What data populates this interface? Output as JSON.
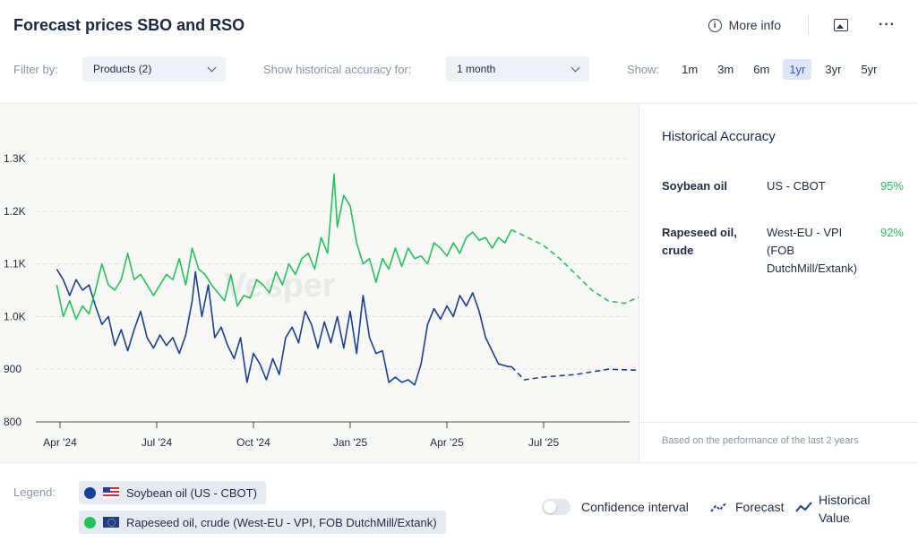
{
  "header": {
    "title": "Forecast prices SBO and RSO",
    "more_info_label": "More info",
    "info_icon": "info-icon",
    "image_icon": "image-icon",
    "more_icon": "more-horizontal-icon"
  },
  "filters": {
    "filter_by_label": "Filter by:",
    "products_value": "Products (2)",
    "accuracy_label": "Show historical accuracy for:",
    "accuracy_value": "1 month",
    "show_label": "Show:",
    "ranges": [
      {
        "label": "1m",
        "active": false
      },
      {
        "label": "3m",
        "active": false
      },
      {
        "label": "6m",
        "active": false
      },
      {
        "label": "1yr",
        "active": true
      },
      {
        "label": "3yr",
        "active": false
      },
      {
        "label": "5yr",
        "active": false
      }
    ]
  },
  "accuracy_panel": {
    "title": "Historical Accuracy",
    "rows": [
      {
        "name": "Soybean oil",
        "exchange": "US - CBOT",
        "pct": "95%"
      },
      {
        "name": "Rapeseed oil, crude",
        "exchange": "West-EU - VPI (FOB DutchMill/Extank)",
        "pct": "92%"
      }
    ],
    "footnote": "Based on the performance of the last 2 years"
  },
  "legend": {
    "label": "Legend:",
    "items": [
      {
        "name": "Soybean oil (US - CBOT)",
        "color": "#1a3f99",
        "flag": "us"
      },
      {
        "name": "Rapeseed oil, crude (West-EU - VPI, FOB DutchMill/Extank)",
        "color": "#23c25a",
        "flag": "eu"
      }
    ],
    "confidence_label": "Confidence interval",
    "forecast_label": "Forecast",
    "historical_label": "Historical Value"
  },
  "chart_data": {
    "type": "line",
    "title": "Forecast prices SBO and RSO",
    "xlabel": "",
    "ylabel": "",
    "x_ticks": [
      "Apr '24",
      "Jul '24",
      "Oct '24",
      "Jan '25",
      "Apr '25",
      "Jul '25"
    ],
    "y_ticks": [
      "800",
      "900",
      "1.0K",
      "1.1K",
      "1.2K",
      "1.3K"
    ],
    "ylim": [
      800,
      1300
    ],
    "x_range_months": [
      -0.1,
      15.0
    ],
    "grid": true,
    "watermark": "Vesper",
    "series": [
      {
        "name": "Soybean oil (US - CBOT)",
        "color": "#1a3f99",
        "historical": [
          [
            -0.1,
            1090
          ],
          [
            0.1,
            1070
          ],
          [
            0.3,
            1040
          ],
          [
            0.5,
            1070
          ],
          [
            0.7,
            1050
          ],
          [
            0.9,
            1060
          ],
          [
            1.1,
            1020
          ],
          [
            1.3,
            985
          ],
          [
            1.5,
            1000
          ],
          [
            1.7,
            945
          ],
          [
            1.9,
            975
          ],
          [
            2.1,
            935
          ],
          [
            2.3,
            975
          ],
          [
            2.5,
            1010
          ],
          [
            2.7,
            960
          ],
          [
            2.9,
            940
          ],
          [
            3.1,
            965
          ],
          [
            3.3,
            945
          ],
          [
            3.5,
            960
          ],
          [
            3.7,
            930
          ],
          [
            3.9,
            965
          ],
          [
            4.1,
            1030
          ],
          [
            4.2,
            1085
          ],
          [
            4.4,
            1000
          ],
          [
            4.6,
            1060
          ],
          [
            4.8,
            960
          ],
          [
            5.0,
            980
          ],
          [
            5.2,
            945
          ],
          [
            5.4,
            920
          ],
          [
            5.6,
            960
          ],
          [
            5.8,
            875
          ],
          [
            6.0,
            930
          ],
          [
            6.2,
            910
          ],
          [
            6.4,
            880
          ],
          [
            6.6,
            920
          ],
          [
            6.8,
            890
          ],
          [
            7.0,
            960
          ],
          [
            7.2,
            980
          ],
          [
            7.4,
            950
          ],
          [
            7.6,
            1010
          ],
          [
            7.8,
            985
          ],
          [
            8.0,
            940
          ],
          [
            8.2,
            990
          ],
          [
            8.4,
            950
          ],
          [
            8.6,
            1000
          ],
          [
            8.8,
            940
          ],
          [
            9.0,
            1010
          ],
          [
            9.2,
            930
          ],
          [
            9.4,
            1040
          ],
          [
            9.6,
            960
          ],
          [
            9.8,
            930
          ],
          [
            10.0,
            935
          ],
          [
            10.2,
            875
          ],
          [
            10.4,
            885
          ],
          [
            10.6,
            875
          ],
          [
            10.8,
            880
          ],
          [
            11.0,
            870
          ],
          [
            11.2,
            910
          ],
          [
            11.4,
            985
          ],
          [
            11.6,
            1015
          ],
          [
            11.8,
            995
          ],
          [
            12.0,
            1020
          ],
          [
            12.2,
            1000
          ],
          [
            12.4,
            1040
          ],
          [
            12.6,
            1020
          ],
          [
            12.8,
            1045
          ],
          [
            13.0,
            1010
          ],
          [
            13.2,
            960
          ],
          [
            13.4,
            935
          ],
          [
            13.6,
            910
          ],
          [
            13.9,
            905
          ],
          [
            14.0,
            905
          ]
        ],
        "forecast": [
          [
            14.0,
            905
          ],
          [
            14.4,
            880
          ],
          [
            15.0,
            885
          ],
          [
            16.0,
            890
          ],
          [
            17.0,
            900
          ],
          [
            18.0,
            898
          ],
          [
            18.8,
            897
          ]
        ]
      },
      {
        "name": "Rapeseed oil, crude (West-EU - VPI, FOB DutchMill/Extank)",
        "color": "#23c25a",
        "historical": [
          [
            -0.1,
            1060
          ],
          [
            0.1,
            1000
          ],
          [
            0.3,
            1030
          ],
          [
            0.5,
            995
          ],
          [
            0.7,
            1020
          ],
          [
            0.9,
            1005
          ],
          [
            1.1,
            1050
          ],
          [
            1.3,
            1100
          ],
          [
            1.5,
            1060
          ],
          [
            1.7,
            1050
          ],
          [
            1.9,
            1070
          ],
          [
            2.1,
            1120
          ],
          [
            2.3,
            1070
          ],
          [
            2.5,
            1080
          ],
          [
            2.7,
            1060
          ],
          [
            2.9,
            1040
          ],
          [
            3.1,
            1060
          ],
          [
            3.3,
            1080
          ],
          [
            3.5,
            1070
          ],
          [
            3.7,
            1110
          ],
          [
            3.9,
            1060
          ],
          [
            4.1,
            1130
          ],
          [
            4.3,
            1090
          ],
          [
            4.5,
            1080
          ],
          [
            4.7,
            1060
          ],
          [
            4.9,
            1045
          ],
          [
            5.1,
            1030
          ],
          [
            5.3,
            1080
          ],
          [
            5.5,
            1020
          ],
          [
            5.7,
            1040
          ],
          [
            5.9,
            1035
          ],
          [
            6.1,
            1070
          ],
          [
            6.3,
            1060
          ],
          [
            6.5,
            1045
          ],
          [
            6.7,
            1085
          ],
          [
            6.9,
            1060
          ],
          [
            7.1,
            1100
          ],
          [
            7.3,
            1080
          ],
          [
            7.5,
            1110
          ],
          [
            7.7,
            1120
          ],
          [
            7.9,
            1090
          ],
          [
            8.1,
            1150
          ],
          [
            8.3,
            1120
          ],
          [
            8.5,
            1270
          ],
          [
            8.6,
            1170
          ],
          [
            8.8,
            1230
          ],
          [
            9.0,
            1210
          ],
          [
            9.2,
            1140
          ],
          [
            9.4,
            1100
          ],
          [
            9.6,
            1110
          ],
          [
            9.8,
            1065
          ],
          [
            10.0,
            1110
          ],
          [
            10.2,
            1090
          ],
          [
            10.4,
            1130
          ],
          [
            10.6,
            1095
          ],
          [
            10.8,
            1130
          ],
          [
            11.0,
            1110
          ],
          [
            11.2,
            1115
          ],
          [
            11.4,
            1100
          ],
          [
            11.6,
            1140
          ],
          [
            11.8,
            1130
          ],
          [
            12.0,
            1115
          ],
          [
            12.2,
            1140
          ],
          [
            12.4,
            1120
          ],
          [
            12.6,
            1150
          ],
          [
            12.8,
            1160
          ],
          [
            13.0,
            1145
          ],
          [
            13.2,
            1150
          ],
          [
            13.4,
            1130
          ],
          [
            13.6,
            1150
          ],
          [
            13.8,
            1140
          ],
          [
            14.0,
            1165
          ]
        ],
        "forecast": [
          [
            14.0,
            1165
          ],
          [
            14.5,
            1150
          ],
          [
            15.0,
            1135
          ],
          [
            15.5,
            1110
          ],
          [
            16.0,
            1080
          ],
          [
            16.5,
            1050
          ],
          [
            17.0,
            1030
          ],
          [
            17.5,
            1025
          ],
          [
            18.0,
            1038
          ],
          [
            18.8,
            1035
          ]
        ]
      }
    ]
  }
}
